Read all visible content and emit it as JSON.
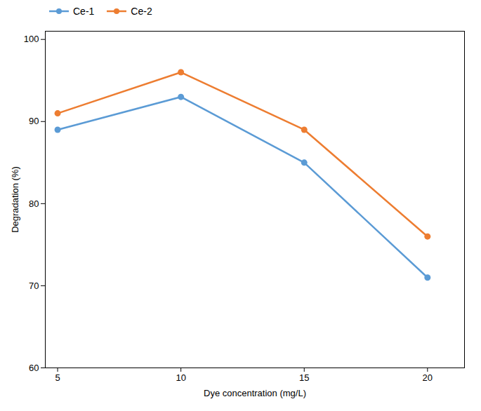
{
  "chart_data": {
    "type": "line",
    "xlabel": "Dye concentration (mg/L)",
    "ylabel": "Degradation (%)",
    "x": [
      5,
      10,
      15,
      20
    ],
    "series": [
      {
        "name": "Ce-1",
        "color": "#5B9BD5",
        "values": [
          89,
          93,
          85,
          71
        ]
      },
      {
        "name": "Ce-2",
        "color": "#ED7D31",
        "values": [
          91,
          96,
          89,
          76
        ]
      }
    ],
    "marker": "circle",
    "xlim": [
      4.5,
      21.5
    ],
    "ylim": [
      60,
      101
    ],
    "xticks": [
      5,
      10,
      15,
      20
    ],
    "yticks": [
      60,
      70,
      80,
      90,
      100
    ],
    "grid": false,
    "legend": "left"
  }
}
